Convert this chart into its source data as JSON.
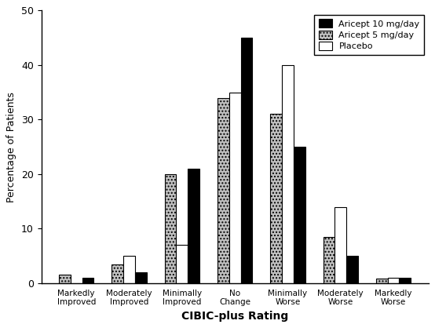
{
  "categories": [
    "Markedly\nImproved",
    "Moderately\nImproved",
    "Minimally\nImproved",
    "No\nChange",
    "Minimally\nWorse",
    "Moderately\nWorse",
    "Markedly\nWorse"
  ],
  "aricept10": [
    1,
    2,
    21,
    45,
    25,
    5,
    1
  ],
  "aricept5": [
    1.5,
    3.5,
    20,
    34,
    31,
    8.5,
    0.8
  ],
  "placebo": [
    0,
    5,
    7,
    35,
    40,
    14,
    1
  ],
  "colors": {
    "aricept10": "#000000",
    "aricept5": "#c0c0c0",
    "placebo": "#ffffff"
  },
  "legend_labels": [
    "Aricept 10 mg/day",
    "Aricept 5 mg/day",
    "Placebo"
  ],
  "xlabel": "CIBIC-plus Rating",
  "ylabel": "Percentage of Patients",
  "ylim": [
    0,
    50
  ],
  "yticks": [
    0,
    10,
    20,
    30,
    40,
    50
  ],
  "bar_width": 0.22,
  "edgecolor": "#000000",
  "background_color": "#ffffff",
  "hatch_aricept5": "....",
  "hatch_placebo": ""
}
